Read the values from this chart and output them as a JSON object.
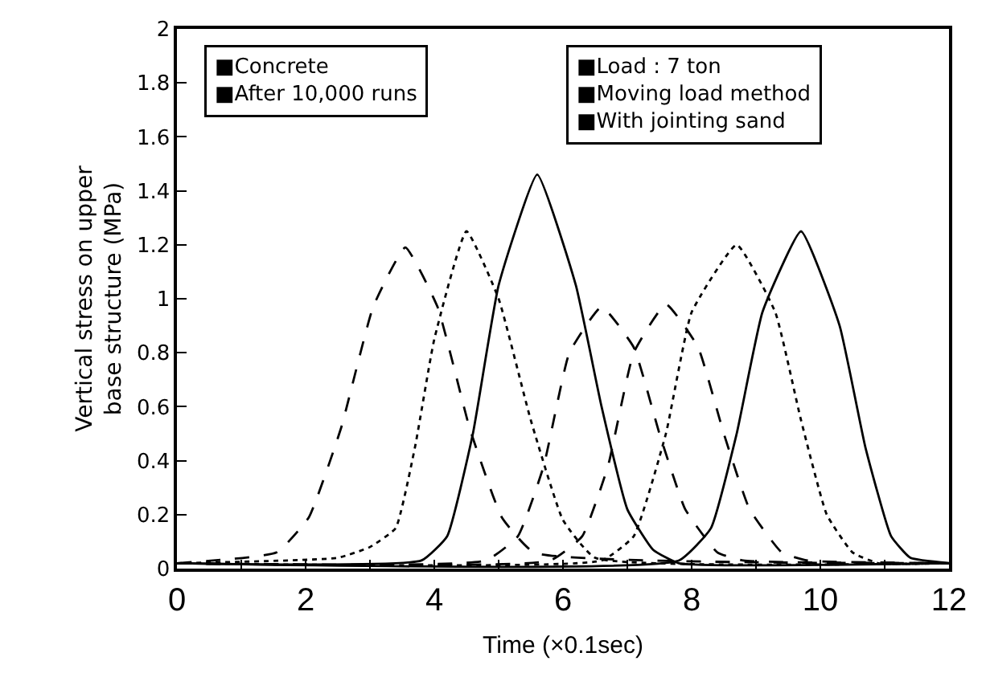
{
  "chart_data": {
    "type": "line",
    "xlabel": "Time (×0.1sec)",
    "ylabel": "Vertical stress on upper\nbase structure (MPa)",
    "annotations": [
      "■Concrete\n■After 10,000 runs",
      "■Load : 7 ton\n■Moving load method\n■With jointing sand"
    ],
    "series": [
      {
        "color": "#000000",
        "line_style": "dashed",
        "x": [
          0,
          1.55,
          2.05,
          2.55,
          3.05,
          3.55,
          4.05,
          4.55,
          5.05,
          5.55,
          12
        ],
        "values": [
          0.02,
          0.06,
          0.19,
          0.52,
          0.97,
          1.19,
          0.97,
          0.52,
          0.19,
          0.06,
          0.02
        ]
      },
      {
        "color": "#000000",
        "line_style": "dotted",
        "x": [
          0,
          2.5,
          3.0,
          3.4,
          3.7,
          4.0,
          4.5,
          5.0,
          5.5,
          6.0,
          6.5,
          12
        ],
        "values": [
          0.02,
          0.04,
          0.08,
          0.15,
          0.45,
          0.85,
          1.25,
          1.0,
          0.55,
          0.18,
          0.04,
          0.02
        ]
      },
      {
        "color": "#000000",
        "line_style": "solid",
        "x": [
          0,
          3.8,
          4.2,
          4.6,
          5.0,
          5.6,
          6.2,
          6.6,
          7.0,
          7.4,
          7.8,
          12
        ],
        "values": [
          0.02,
          0.03,
          0.12,
          0.5,
          1.05,
          1.46,
          1.05,
          0.6,
          0.22,
          0.07,
          0.02,
          0.02
        ]
      },
      {
        "color": "#000000",
        "line_style": "dashed",
        "x": [
          0,
          4.8,
          5.3,
          5.7,
          6.1,
          6.6,
          7.1,
          7.5,
          7.9,
          8.4,
          8.8,
          12
        ],
        "values": [
          0.02,
          0.03,
          0.12,
          0.38,
          0.8,
          0.97,
          0.82,
          0.5,
          0.22,
          0.06,
          0.03,
          0.02
        ]
      },
      {
        "color": "#000000",
        "line_style": "dashed",
        "x": [
          0,
          5.8,
          6.3,
          6.7,
          7.1,
          7.6,
          8.1,
          8.5,
          8.9,
          9.4,
          9.8,
          12
        ],
        "values": [
          0.02,
          0.03,
          0.12,
          0.38,
          0.8,
          0.98,
          0.82,
          0.5,
          0.22,
          0.06,
          0.03,
          0.02
        ]
      },
      {
        "color": "#000000",
        "line_style": "dotted",
        "x": [
          0,
          6.6,
          7.1,
          7.6,
          8.0,
          8.7,
          9.3,
          9.7,
          10.1,
          10.5,
          10.9,
          12
        ],
        "values": [
          0.02,
          0.03,
          0.12,
          0.5,
          0.95,
          1.2,
          0.95,
          0.55,
          0.2,
          0.06,
          0.02,
          0.02
        ]
      },
      {
        "color": "#000000",
        "line_style": "solid",
        "x": [
          0,
          7.8,
          8.3,
          8.7,
          9.1,
          9.7,
          10.3,
          10.7,
          11.1,
          11.4,
          12
        ],
        "values": [
          0.02,
          0.03,
          0.15,
          0.5,
          0.95,
          1.25,
          0.9,
          0.45,
          0.12,
          0.04,
          0.02
        ]
      }
    ],
    "xlim": [
      0,
      12
    ],
    "xticks": [
      0,
      2,
      4,
      6,
      8,
      10,
      12
    ],
    "ylim": [
      0,
      2
    ],
    "yticks": [
      0,
      0.2,
      0.4,
      0.6,
      0.8,
      1,
      1.2,
      1.4,
      1.6,
      1.8,
      2
    ]
  }
}
